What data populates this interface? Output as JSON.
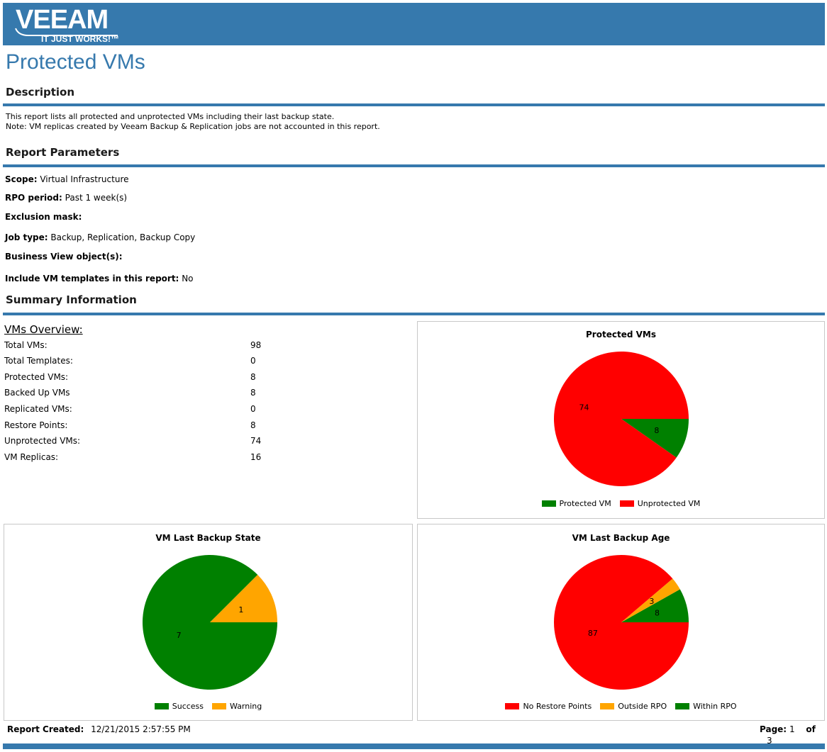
{
  "brand": {
    "logo_text": "VEEAM",
    "tagline": "IT JUST WORKS!™"
  },
  "page_title": "Protected VMs",
  "description": {
    "title": "Description",
    "lines": [
      "This report lists all protected and unprotected VMs including their last backup state.",
      "Note: VM replicas created by Veeam Backup & Replication jobs are not accounted in this report."
    ]
  },
  "parameters": {
    "title": "Report Parameters",
    "items": [
      {
        "label": "Scope:",
        "value": "Virtual Infrastructure"
      },
      {
        "label": "RPO period:",
        "value": "Past 1 week(s)"
      },
      {
        "label": "Exclusion mask:",
        "value": ""
      },
      {
        "label": "Job type:",
        "value": "Backup, Replication, Backup Copy"
      },
      {
        "label": "Business View object(s):",
        "value": ""
      },
      {
        "label": "Include VM templates in this report:",
        "value": "No"
      }
    ]
  },
  "summary": {
    "title": "Summary Information",
    "overview_title": "VMs Overview:",
    "rows": [
      {
        "label": "Total VMs:",
        "value": "98"
      },
      {
        "label": "Total Templates:",
        "value": "0"
      },
      {
        "label": "Protected VMs:",
        "value": "8"
      },
      {
        "label": "Backed Up VMs",
        "value": "8"
      },
      {
        "label": "Replicated VMs:",
        "value": "0"
      },
      {
        "label": "Restore Points:",
        "value": "8"
      },
      {
        "label": "Unprotected VMs:",
        "value": "74"
      },
      {
        "label": "VM Replicas:",
        "value": "16"
      }
    ]
  },
  "chart_data": [
    {
      "type": "pie",
      "title": "Protected VMs",
      "categories": [
        "Protected VM",
        "Unprotected VM"
      ],
      "values": [
        8,
        74
      ],
      "colors": [
        "#008000",
        "#ff0000"
      ],
      "legend": "bottom"
    },
    {
      "type": "pie",
      "title": "VM Last Backup State",
      "categories": [
        "Success",
        "Warning"
      ],
      "values": [
        7,
        1
      ],
      "colors": [
        "#008000",
        "#ffa500"
      ],
      "legend": "bottom"
    },
    {
      "type": "pie",
      "title": "VM Last Backup Age",
      "categories": [
        "No Restore Points",
        "Outside RPO",
        "Within RPO"
      ],
      "values": [
        87,
        3,
        8
      ],
      "colors": [
        "#ff0000",
        "#ffa500",
        "#008000"
      ],
      "legend": "bottom"
    }
  ],
  "footer": {
    "created_label": "Report Created:",
    "created_value": "12/21/2015 2:57:55 PM",
    "page_label": "Page:",
    "page_current": "1",
    "of_label": "of",
    "page_total": "3"
  }
}
